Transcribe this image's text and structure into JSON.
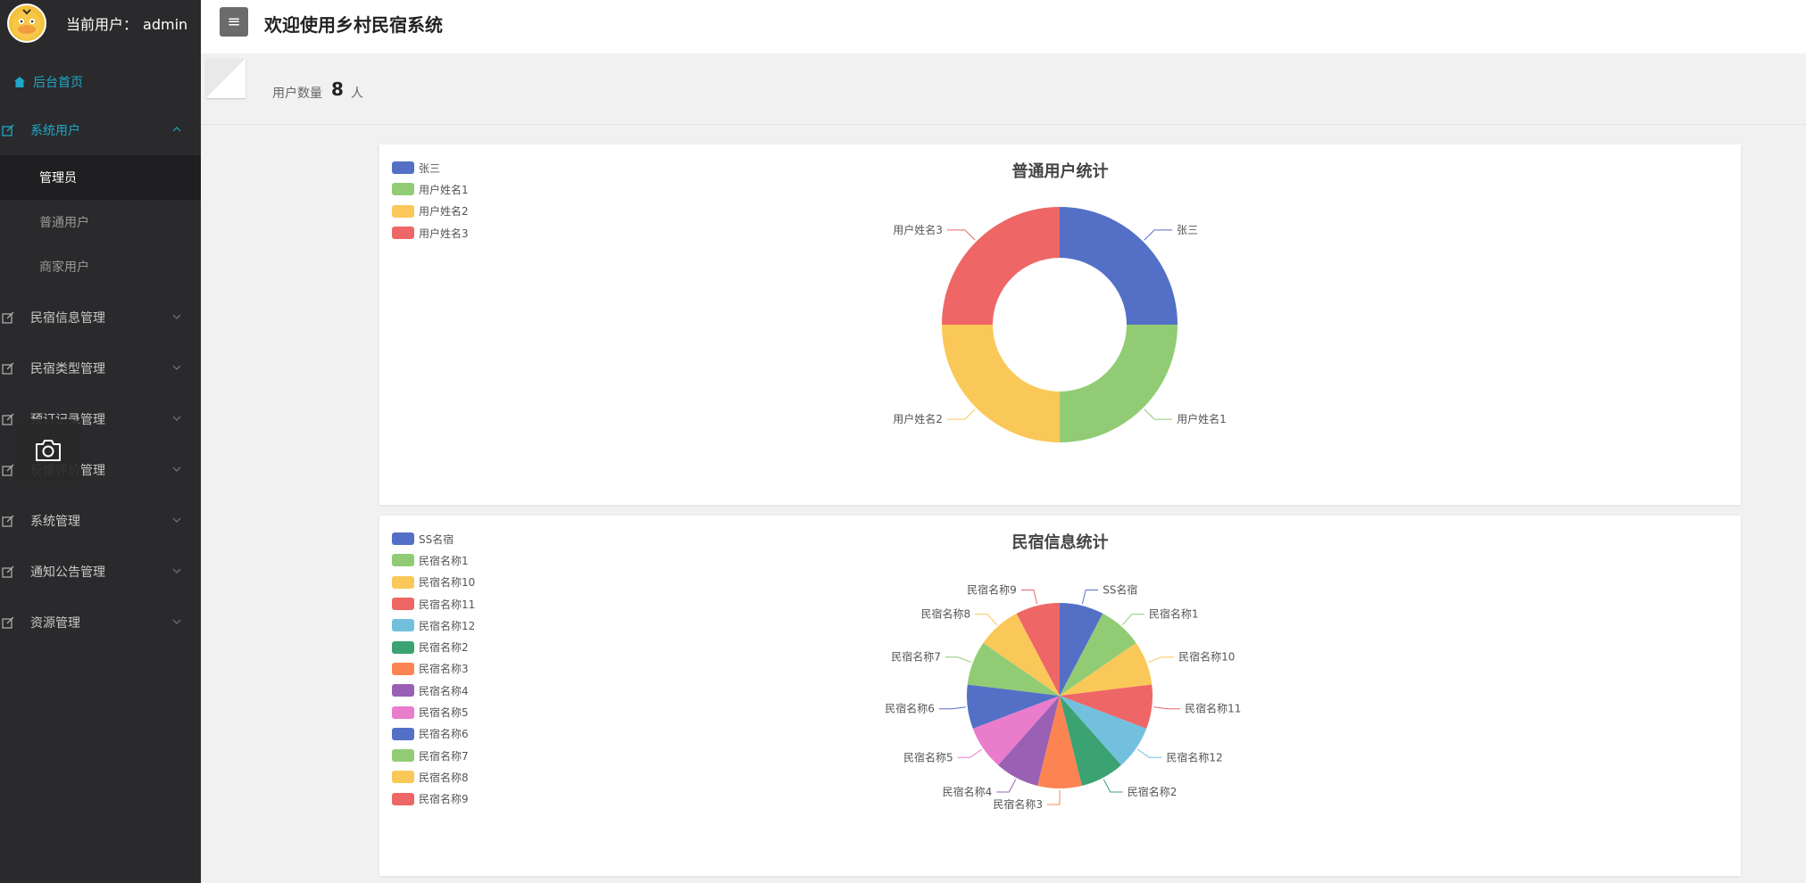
{
  "header": {
    "user_label": "当前用户：",
    "username": "admin",
    "menu_icon": "≡",
    "title": "欢迎使用乡村民宿系统"
  },
  "sidebar": {
    "home": "后台首页",
    "items": [
      {
        "label": "系统用户",
        "active": true
      },
      {
        "label": "民宿信息管理"
      },
      {
        "label": "民宿类型管理"
      },
      {
        "label": "预订记录管理"
      },
      {
        "label": "反馈评价管理"
      },
      {
        "label": "系统管理"
      },
      {
        "label": "通知公告管理"
      },
      {
        "label": "资源管理"
      }
    ],
    "sub_items": [
      {
        "label": "管理员",
        "selected": true
      },
      {
        "label": "普通用户"
      },
      {
        "label": "商家用户"
      }
    ]
  },
  "stats": {
    "label": "用户数量",
    "value": "8",
    "unit": "人"
  },
  "colors": {
    "accent": "#1fa7c9",
    "sidebar_bg": "#2a2a2c"
  },
  "chart_data": [
    {
      "type": "pie",
      "variant": "donut",
      "title": "普通用户统计",
      "legend_position": "top-left",
      "categories": [
        "张三",
        "用户姓名1",
        "用户姓名2",
        "用户姓名3"
      ],
      "values": [
        1,
        1,
        1,
        1
      ],
      "colors": [
        "#5470c6",
        "#91cc75",
        "#fac858",
        "#ee6666"
      ]
    },
    {
      "type": "pie",
      "title": "民宿信息统计",
      "legend_position": "top-left",
      "categories": [
        "SS名宿",
        "民宿名称1",
        "民宿名称10",
        "民宿名称11",
        "民宿名称12",
        "民宿名称2",
        "民宿名称3",
        "民宿名称4",
        "民宿名称5",
        "民宿名称6",
        "民宿名称7",
        "民宿名称8",
        "民宿名称9"
      ],
      "values": [
        1,
        1,
        1,
        1,
        1,
        1,
        1,
        1,
        1,
        1,
        1,
        1,
        1
      ],
      "colors": [
        "#5470c6",
        "#91cc75",
        "#fac858",
        "#ee6666",
        "#73c0de",
        "#3ba272",
        "#fc8452",
        "#9a60b4",
        "#ea7ccc",
        "#5470c6",
        "#91cc75",
        "#fac858",
        "#ee6666"
      ]
    }
  ]
}
